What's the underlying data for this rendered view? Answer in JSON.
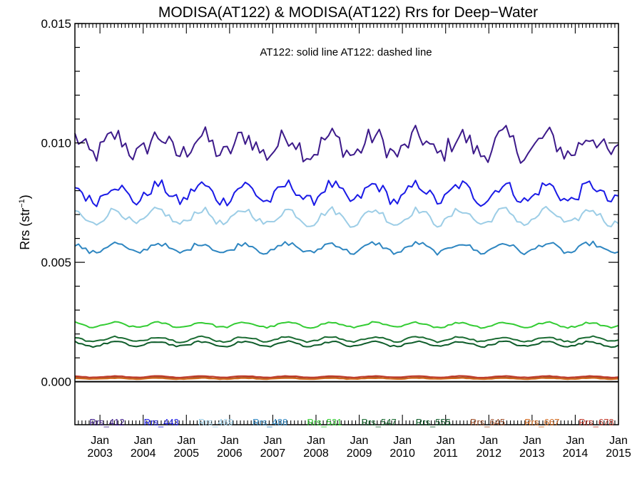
{
  "chart_data": {
    "type": "line",
    "title": "MODISA(AT122) & MODISA(AT122)  Rrs for Deep−Water",
    "annotation": "AT122: solid line   AT122: dashed line",
    "ylabel": "Rrs (str",
    "ylabel_sup": "−1",
    "ylabel_close": ")",
    "ylim": [
      -0.0018,
      0.015
    ],
    "yticks": [
      0.0,
      0.005,
      0.01,
      0.015
    ],
    "ytick_labels": [
      "0.000",
      "0.005",
      "0.010",
      "0.015"
    ],
    "xlim": [
      2002.42,
      2015.0
    ],
    "xticks": [
      2003,
      2004,
      2005,
      2006,
      2007,
      2008,
      2009,
      2010,
      2011,
      2012,
      2013,
      2014,
      2015
    ],
    "xtick_month": "Jan",
    "xtick_years": [
      "2003",
      "2004",
      "2005",
      "2006",
      "2007",
      "2008",
      "2009",
      "2010",
      "2011",
      "2012",
      "2013",
      "2014",
      "2015"
    ],
    "zero_line": true,
    "grid": false,
    "legend_position": "bottom",
    "series": [
      {
        "name": "Rrs_412",
        "color": "#3d1a8a",
        "mean": 0.0099,
        "amp": 0.0004,
        "trend": 0.0,
        "phase": 0.1,
        "noise": 0.00045
      },
      {
        "name": "Rrs_443",
        "color": "#1a1ae6",
        "mean": 0.0079,
        "amp": 0.00035,
        "trend": 0.0,
        "phase": 0.1,
        "noise": 0.00025
      },
      {
        "name": "Rrs_469",
        "color": "#9ccde6",
        "mean": 0.0069,
        "amp": 0.0003,
        "trend": 0.0,
        "phase": 0.1,
        "noise": 0.00015
      },
      {
        "name": "Rrs_488",
        "color": "#2e86c1",
        "mean": 0.0056,
        "amp": 0.0002,
        "trend": 0.0,
        "phase": 0.1,
        "noise": 0.0001
      },
      {
        "name": "Rrs_531",
        "color": "#33cc33",
        "mean": 0.00238,
        "amp": 0.0001,
        "trend": 0.0,
        "phase": 0.1,
        "noise": 4e-05
      },
      {
        "name": "Rrs_547",
        "color": "#1a6b32",
        "mean": 0.00178,
        "amp": 0.0001,
        "trend": 0.0,
        "phase": 0.1,
        "noise": 4e-05
      },
      {
        "name": "Rrs_555",
        "color": "#0e5c2a",
        "mean": 0.00158,
        "amp": 0.0001,
        "trend": 0.0,
        "phase": 0.1,
        "noise": 4e-05
      },
      {
        "name": "Rrs_645",
        "color": "#a0522d",
        "mean": 0.00016,
        "amp": 3e-05,
        "trend": 0.0,
        "phase": 0.1,
        "noise": 1e-05
      },
      {
        "name": "Rrs_667",
        "color": "#d2691e",
        "mean": 0.00013,
        "amp": 2e-05,
        "trend": 0.0,
        "phase": 0.1,
        "noise": 1e-05
      },
      {
        "name": "Rrs_678",
        "color": "#c0392b",
        "mean": 0.00021,
        "amp": 3e-05,
        "trend": 0.0,
        "phase": 0.1,
        "noise": 1e-05
      }
    ]
  }
}
